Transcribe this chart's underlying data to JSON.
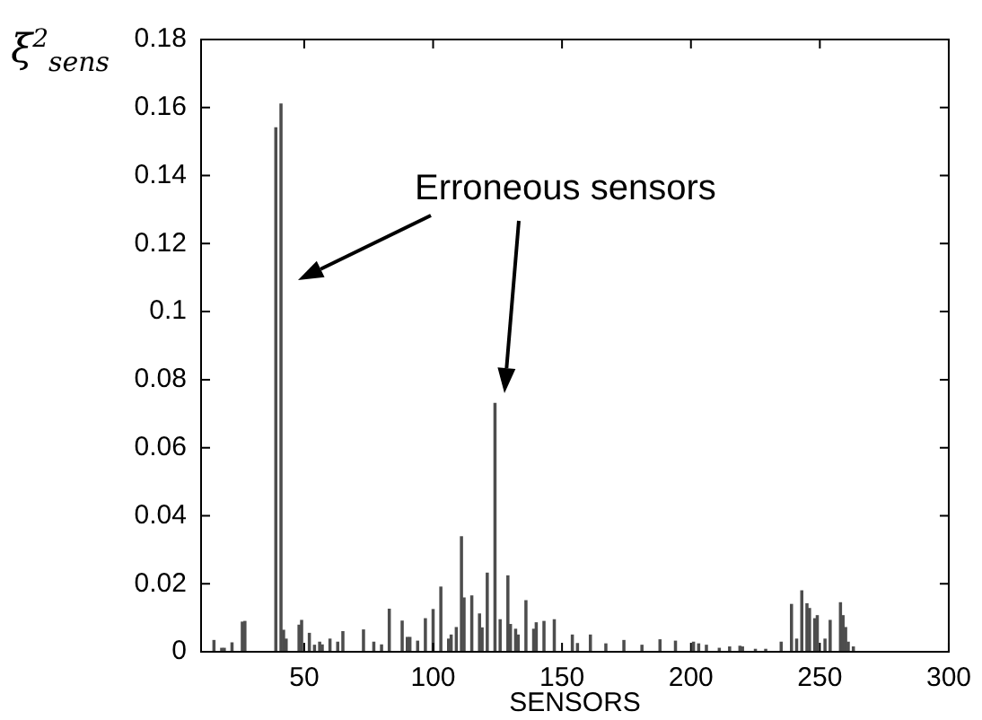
{
  "chart_data": {
    "type": "bar",
    "xlabel": "SENSORS",
    "ylabel": "ξ$^{2}$$_{sens}$",
    "annotations": [
      "Erroneous sensors"
    ],
    "x": [
      15,
      18,
      19,
      22,
      26,
      27,
      39,
      41,
      42,
      43,
      48,
      49,
      52,
      54,
      56,
      57,
      60,
      63,
      65,
      73,
      77,
      80,
      83,
      88,
      90,
      91,
      94,
      97,
      100,
      103,
      106,
      107,
      109,
      111,
      112,
      115,
      118,
      119,
      121,
      124,
      126,
      129,
      130,
      132,
      133,
      136,
      139,
      140,
      143,
      147,
      154,
      156,
      161,
      167,
      174,
      181,
      188,
      194,
      201,
      203,
      206,
      211,
      215,
      219,
      220,
      225,
      229,
      235,
      239,
      241,
      243,
      245,
      246,
      248,
      249,
      252,
      254,
      258,
      259,
      260,
      261,
      263
    ],
    "values": [
      0.0033,
      0.001,
      0.001,
      0.0026,
      0.0087,
      0.0089,
      0.154,
      0.161,
      0.0063,
      0.0037,
      0.0078,
      0.0092,
      0.0054,
      0.0019,
      0.0028,
      0.002,
      0.0037,
      0.0028,
      0.0059,
      0.0064,
      0.0028,
      0.002,
      0.0125,
      0.009,
      0.0042,
      0.0042,
      0.0031,
      0.0097,
      0.0124,
      0.019,
      0.0037,
      0.0049,
      0.0071,
      0.0338,
      0.0158,
      0.0164,
      0.0111,
      0.007,
      0.0231,
      0.073,
      0.0094,
      0.0223,
      0.008,
      0.0066,
      0.0049,
      0.015,
      0.0066,
      0.0085,
      0.0089,
      0.0094,
      0.0049,
      0.0024,
      0.0049,
      0.0023,
      0.0033,
      0.0019,
      0.0035,
      0.0031,
      0.0028,
      0.0023,
      0.0019,
      0.001,
      0.0014,
      0.0016,
      0.0014,
      0.0007,
      0.0007,
      0.0028,
      0.0139,
      0.0037,
      0.0179,
      0.0141,
      0.0127,
      0.0097,
      0.0106,
      0.0037,
      0.0092,
      0.0144,
      0.0106,
      0.0071,
      0.0028,
      0.0014
    ],
    "color": "#4d4d4d",
    "xlim": [
      10,
      300
    ],
    "xticks": [
      50,
      100,
      150,
      200,
      250,
      300
    ],
    "ylim": [
      0,
      0.18
    ],
    "yticks": [
      0,
      0.02,
      0.04,
      0.06,
      0.08,
      0.1,
      0.12,
      0.14,
      0.16,
      0.18
    ]
  }
}
